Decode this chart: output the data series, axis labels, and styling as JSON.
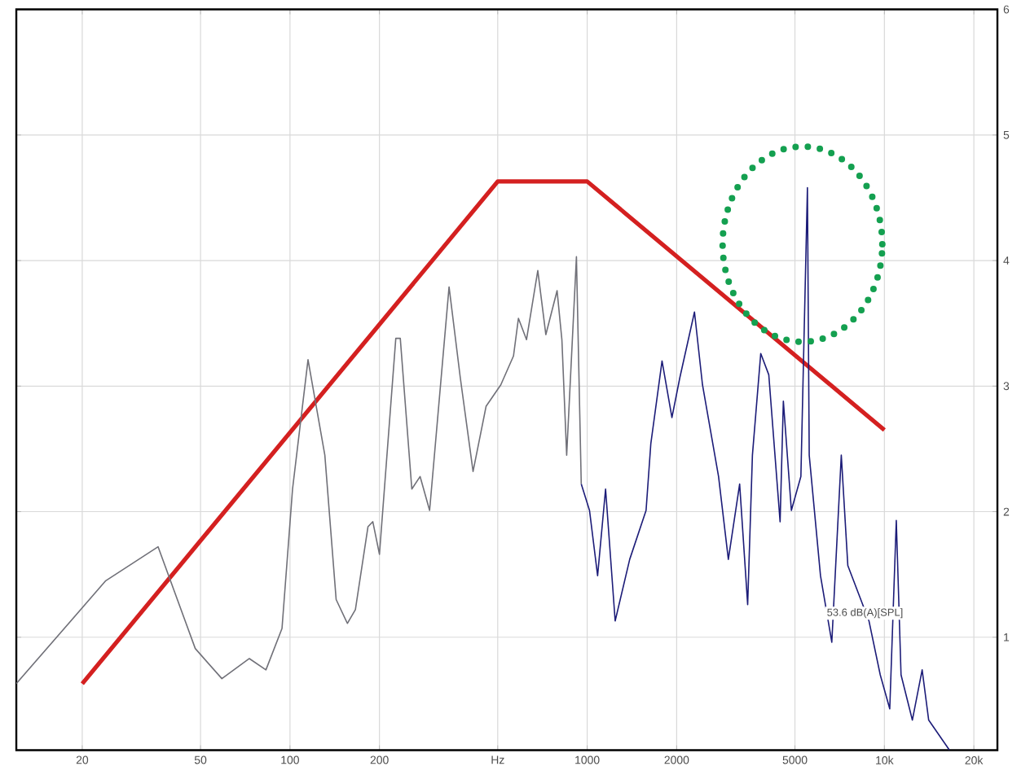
{
  "chart_data": {
    "type": "line",
    "log": "x",
    "grid": true,
    "xlim": [
      12,
      24000
    ],
    "ylim": [
      0.1,
      6
    ],
    "xticks": [
      20,
      50,
      100,
      200,
      {
        "value": 500,
        "label": "Hz"
      },
      1000,
      2000,
      5000,
      {
        "value": 10000,
        "label": "10k"
      },
      {
        "value": 20000,
        "label": "20k"
      }
    ],
    "yticks": [
      1,
      2,
      3,
      4,
      5,
      6
    ],
    "annotations": [
      "53.6 dB(A)[SPL]"
    ],
    "series": [
      {
        "color": "#d42020",
        "x": [
          20,
          500,
          1000,
          10000
        ],
        "values": [
          0.63,
          4.63,
          4.63,
          2.65
        ]
      },
      {
        "color": "#707078",
        "x": [
          12,
          24,
          36,
          48,
          59,
          73,
          83,
          94,
          102,
          115,
          131,
          143,
          156,
          166,
          183,
          190,
          200,
          227,
          235,
          257,
          274,
          295,
          343,
          374,
          413,
          457,
          512,
          565,
          587,
          625,
          682,
          726,
          792,
          822,
          853,
          920,
          955
        ],
        "values": [
          0.63,
          1.45,
          1.72,
          0.91,
          0.67,
          0.83,
          0.74,
          1.07,
          2.18,
          3.21,
          2.45,
          1.3,
          1.11,
          1.22,
          1.88,
          1.92,
          1.66,
          3.38,
          3.38,
          2.18,
          2.28,
          2.01,
          3.79,
          3.07,
          2.32,
          2.84,
          3.01,
          3.24,
          3.54,
          3.37,
          3.92,
          3.41,
          3.76,
          3.37,
          2.45,
          4.03,
          2.22
        ]
      },
      {
        "color": "#1c1c78",
        "x": [
          955,
          1018,
          1084,
          1153,
          1242,
          1390,
          1578,
          1637,
          1786,
          1928,
          2051,
          2296,
          2443,
          2767,
          2985,
          3258,
          3467,
          3597,
          3837,
          4083,
          4457,
          4571,
          4864,
          5236,
          5508,
          5585,
          6095,
          6653,
          7161,
          7534,
          8872,
          9683,
          10423,
          10965,
          11376,
          12417,
          13397,
          14093,
          16558
        ],
        "values": [
          2.22,
          2.01,
          1.49,
          2.18,
          1.13,
          1.62,
          2.01,
          2.54,
          3.2,
          2.75,
          3.07,
          3.59,
          3.01,
          2.28,
          1.62,
          2.22,
          1.26,
          2.45,
          3.26,
          3.09,
          1.92,
          2.88,
          2.01,
          2.28,
          4.58,
          2.45,
          1.49,
          0.96,
          2.45,
          1.57,
          1.13,
          0.7,
          0.43,
          1.93,
          0.7,
          0.34,
          0.74,
          0.34,
          0.1
        ]
      }
    ]
  }
}
